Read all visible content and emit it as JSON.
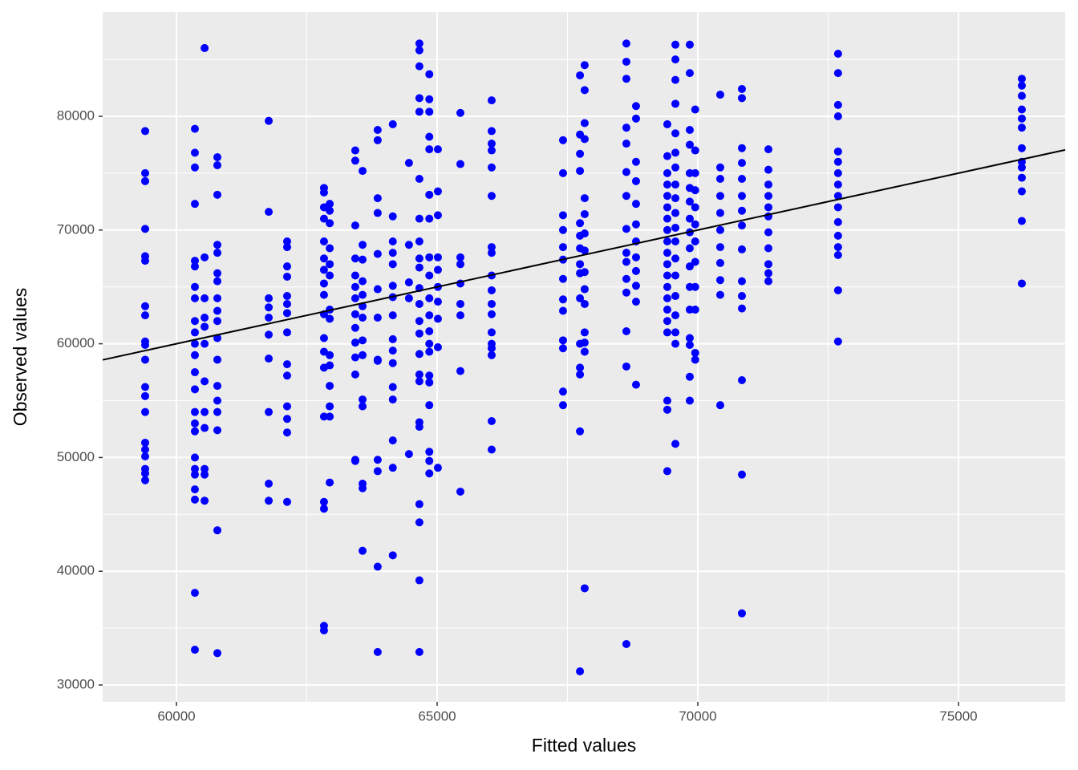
{
  "chart_data": {
    "type": "scatter",
    "x_label": "Fitted values",
    "y_label": "Observed values",
    "color": "#0000ff",
    "line_color": "#000000",
    "identity_line": true,
    "grid": true,
    "xlim": [
      58585,
      77046
    ],
    "ylim": [
      28519,
      89168
    ],
    "xticks": [
      60000,
      65000,
      70000,
      75000
    ],
    "yticks": [
      30000,
      40000,
      50000,
      60000,
      70000,
      80000
    ],
    "minor_xticks": [
      62500,
      67500,
      72500
    ],
    "minor_yticks": [
      35000,
      45000,
      55000,
      65000,
      75000,
      85000
    ],
    "groups": [
      {
        "x": 59400,
        "values": [
          78700,
          75000,
          74300,
          70100,
          67700,
          67300,
          63300,
          62500,
          60200,
          59900,
          58600,
          56200,
          55400,
          54000,
          51300,
          50700,
          50100,
          49000,
          48600,
          48000
        ]
      },
      {
        "x": 60354,
        "values": [
          78900,
          76800,
          75500,
          72300,
          67300,
          66800,
          65000,
          64000,
          62000,
          61000,
          60000,
          59000,
          57500,
          56000,
          54000,
          53000,
          52300,
          50000,
          49000,
          48500,
          47200,
          46300,
          38100,
          33100
        ]
      },
      {
        "x": 60540,
        "values": [
          86000,
          67600,
          64000,
          62300,
          61500,
          60000,
          56700,
          54000,
          52600,
          49000,
          48500,
          46200
        ]
      },
      {
        "x": 60785,
        "values": [
          76400,
          75700,
          73100,
          68700,
          68000,
          66200,
          65500,
          64000,
          62900,
          62000,
          60500,
          58600,
          56300,
          55000,
          54000,
          52400,
          43600,
          32800
        ]
      },
      {
        "x": 61770,
        "values": [
          79600,
          71600,
          64000,
          63200,
          62300,
          60800,
          58700,
          54000,
          47700,
          46200
        ]
      },
      {
        "x": 62123,
        "values": [
          69000,
          68500,
          66800,
          65900,
          64200,
          63500,
          62700,
          61000,
          58200,
          57200,
          54500,
          53400,
          52200,
          46100
        ]
      },
      {
        "x": 62830,
        "values": [
          73700,
          73300,
          72000,
          71000,
          69000,
          67500,
          66500,
          65300,
          64300,
          62600,
          60500,
          59300,
          57900,
          53600,
          46100,
          45500,
          35200,
          34800
        ]
      },
      {
        "x": 62940,
        "values": [
          72300,
          71700,
          70600,
          68400,
          67000,
          66000,
          63000,
          62200,
          59000,
          58100,
          56300,
          54500,
          53600,
          47800
        ]
      },
      {
        "x": 63430,
        "values": [
          77000,
          76100,
          70400,
          67500,
          66000,
          65000,
          64000,
          62600,
          61400,
          60100,
          58800,
          57300,
          49800,
          49700
        ]
      },
      {
        "x": 63570,
        "values": [
          75200,
          68700,
          67400,
          65500,
          64300,
          63300,
          62300,
          60300,
          59000,
          55100,
          54500,
          47700,
          47300,
          41800
        ]
      },
      {
        "x": 63860,
        "values": [
          78800,
          77900,
          72800,
          71500,
          67900,
          64800,
          62300,
          58600,
          58500,
          49800,
          48800,
          40400,
          32900
        ]
      },
      {
        "x": 64150,
        "values": [
          79300,
          71200,
          69000,
          68000,
          67000,
          65100,
          64100,
          62500,
          60400,
          59400,
          58300,
          56200,
          55100,
          51500,
          49100,
          41400
        ]
      },
      {
        "x": 64460,
        "values": [
          75900,
          68700,
          65400,
          64000,
          50300
        ]
      },
      {
        "x": 64660,
        "values": [
          86400,
          85800,
          84400,
          81600,
          80400,
          74500,
          71000,
          69000,
          67500,
          66700,
          64900,
          63500,
          62000,
          60900,
          59100,
          57300,
          56700,
          53100,
          52700,
          45900,
          44300,
          39200,
          32900
        ]
      },
      {
        "x": 64850,
        "values": [
          83700,
          81500,
          80400,
          78200,
          77100,
          73100,
          71000,
          67600,
          66000,
          64000,
          62500,
          61100,
          60000,
          59300,
          57200,
          56600,
          54600,
          50500,
          49700,
          48600
        ]
      },
      {
        "x": 65015,
        "values": [
          77100,
          73400,
          71300,
          67600,
          66500,
          65000,
          63700,
          62200,
          59700,
          49100
        ]
      },
      {
        "x": 65446,
        "values": [
          80300,
          75800,
          67600,
          67000,
          65300,
          63500,
          62500,
          57600,
          47000
        ]
      },
      {
        "x": 66046,
        "values": [
          81400,
          78700,
          77600,
          77000,
          75500,
          73000,
          68500,
          68000,
          66000,
          64700,
          63500,
          62600,
          61000,
          60000,
          59600,
          59000,
          53200,
          50700
        ]
      },
      {
        "x": 67415,
        "values": [
          77900,
          75000,
          71300,
          70000,
          68500,
          67400,
          65700,
          63900,
          62900,
          60300,
          59600,
          55800,
          54600
        ]
      },
      {
        "x": 67740,
        "values": [
          83600,
          78400,
          76700,
          75200,
          70600,
          69500,
          68400,
          67000,
          66200,
          64000,
          60000,
          57900,
          57300,
          52300,
          31200
        ]
      },
      {
        "x": 67830,
        "values": [
          84500,
          82300,
          79400,
          78000,
          72800,
          71400,
          69700,
          68200,
          66300,
          64800,
          63500,
          61000,
          60100,
          59300,
          38500
        ]
      },
      {
        "x": 68630,
        "values": [
          86400,
          84800,
          83300,
          79000,
          77600,
          75100,
          73000,
          70100,
          68000,
          67200,
          65700,
          64500,
          61100,
          58000,
          33600
        ]
      },
      {
        "x": 68815,
        "values": [
          80900,
          79800,
          76000,
          74300,
          72300,
          70500,
          69000,
          67600,
          66400,
          65100,
          63700,
          56400
        ]
      },
      {
        "x": 69415,
        "values": [
          79300,
          76500,
          75000,
          74000,
          73000,
          72000,
          71000,
          70000,
          69000,
          68000,
          67000,
          66000,
          65000,
          64000,
          63000,
          62000,
          61000,
          55000,
          54200,
          48800
        ]
      },
      {
        "x": 69570,
        "values": [
          86300,
          85000,
          83200,
          81100,
          78500,
          76800,
          75500,
          74000,
          72800,
          71500,
          70200,
          69000,
          67500,
          66000,
          64200,
          62500,
          61000,
          60000,
          51200
        ]
      },
      {
        "x": 69846,
        "values": [
          86300,
          83800,
          78800,
          77500,
          75000,
          73700,
          72500,
          71000,
          69800,
          68400,
          66800,
          65000,
          63000,
          60500,
          59900,
          57100,
          55000
        ]
      },
      {
        "x": 69950,
        "values": [
          80600,
          77000,
          75000,
          73500,
          72000,
          70500,
          69000,
          67200,
          65000,
          63000,
          59200,
          58600
        ]
      },
      {
        "x": 70430,
        "values": [
          81900,
          75500,
          74500,
          73000,
          71500,
          70000,
          68500,
          67100,
          65600,
          64300,
          54600
        ]
      },
      {
        "x": 70846,
        "values": [
          82400,
          81600,
          77200,
          75900,
          74500,
          73000,
          71700,
          70400,
          68300,
          65500,
          64200,
          63100,
          56800,
          48500,
          36300
        ]
      },
      {
        "x": 71354,
        "values": [
          77100,
          75300,
          74000,
          73000,
          72000,
          71200,
          69800,
          68400,
          67000,
          66200,
          65500
        ]
      },
      {
        "x": 72690,
        "values": [
          85500,
          83800,
          81000,
          80000,
          76900,
          76000,
          75000,
          74000,
          73000,
          72000,
          70700,
          69500,
          68500,
          67800,
          64700,
          60200
        ]
      },
      {
        "x": 76215,
        "values": [
          83300,
          82700,
          81800,
          80600,
          79800,
          79000,
          77200,
          76000,
          75500,
          74600,
          73400,
          70800,
          65300
        ]
      }
    ]
  }
}
